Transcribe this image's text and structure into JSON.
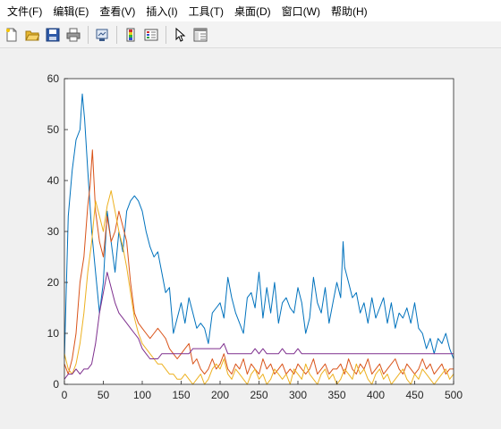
{
  "menu": {
    "items": [
      {
        "label": "文件(F)"
      },
      {
        "label": "编辑(E)"
      },
      {
        "label": "查看(V)"
      },
      {
        "label": "插入(I)"
      },
      {
        "label": "工具(T)"
      },
      {
        "label": "桌面(D)"
      },
      {
        "label": "窗口(W)"
      },
      {
        "label": "帮助(H)"
      }
    ]
  },
  "toolbar": {
    "buttons": [
      {
        "icon": "new-file-icon"
      },
      {
        "icon": "open-folder-icon"
      },
      {
        "icon": "save-icon"
      },
      {
        "icon": "print-icon"
      },
      {
        "icon": "link-plot-icon"
      },
      {
        "icon": "insert-colorbar-icon"
      },
      {
        "icon": "insert-legend-icon"
      },
      {
        "icon": "edit-plot-arrow-icon"
      },
      {
        "icon": "property-inspector-icon"
      }
    ]
  },
  "colors": {
    "blue": "#0072bd",
    "orange": "#d95319",
    "yellow": "#edb120",
    "purple": "#7e2f8e"
  },
  "chart_data": {
    "type": "line",
    "title": "",
    "xlabel": "",
    "ylabel": "",
    "xlim": [
      0,
      500
    ],
    "ylim": [
      0,
      60
    ],
    "xticks": [
      "0",
      "50",
      "100",
      "150",
      "200",
      "250",
      "300",
      "350",
      "400",
      "450",
      "500"
    ],
    "yticks": [
      "0",
      "10",
      "20",
      "30",
      "40",
      "50",
      "60"
    ],
    "grid": false,
    "legend": "none",
    "series": [
      {
        "color": "#0072bd",
        "x": [
          0,
          5,
          10,
          15,
          20,
          23,
          26,
          30,
          35,
          40,
          45,
          50,
          55,
          60,
          65,
          70,
          75,
          80,
          85,
          90,
          95,
          100,
          105,
          110,
          115,
          120,
          125,
          130,
          135,
          140,
          145,
          150,
          155,
          160,
          165,
          170,
          175,
          180,
          185,
          190,
          195,
          200,
          205,
          210,
          215,
          220,
          225,
          230,
          235,
          240,
          245,
          250,
          255,
          260,
          265,
          270,
          275,
          280,
          285,
          290,
          295,
          300,
          305,
          310,
          315,
          320,
          325,
          330,
          335,
          340,
          345,
          350,
          355,
          358,
          360,
          365,
          370,
          375,
          380,
          385,
          390,
          395,
          400,
          405,
          410,
          415,
          420,
          425,
          430,
          435,
          440,
          445,
          450,
          455,
          460,
          465,
          470,
          475,
          480,
          485,
          490,
          495,
          500
        ],
        "values": [
          5,
          33,
          42,
          48,
          50,
          57,
          52,
          42,
          30,
          22,
          14,
          20,
          34,
          28,
          22,
          30,
          26,
          34,
          36,
          37,
          36,
          34,
          30,
          27,
          25,
          26,
          22,
          18,
          19,
          10,
          13,
          16,
          12,
          17,
          14,
          11,
          12,
          11,
          8,
          14,
          15,
          16,
          13,
          21,
          17,
          14,
          12,
          10,
          17,
          18,
          15,
          22,
          13,
          19,
          14,
          20,
          12,
          16,
          17,
          15,
          14,
          19,
          16,
          10,
          13,
          21,
          16,
          14,
          19,
          12,
          16,
          20,
          17,
          28,
          23,
          20,
          17,
          18,
          14,
          16,
          12,
          17,
          13,
          15,
          17,
          12,
          16,
          11,
          14,
          13,
          15,
          12,
          16,
          11,
          10,
          7,
          9,
          6,
          9,
          8,
          10,
          7,
          5
        ]
      },
      {
        "color": "#d95319",
        "x": [
          0,
          5,
          10,
          15,
          20,
          25,
          30,
          33,
          36,
          40,
          45,
          50,
          55,
          60,
          65,
          70,
          75,
          80,
          85,
          90,
          95,
          100,
          105,
          110,
          115,
          120,
          125,
          130,
          135,
          140,
          145,
          150,
          155,
          160,
          165,
          170,
          175,
          180,
          185,
          190,
          195,
          200,
          205,
          210,
          215,
          220,
          225,
          230,
          235,
          240,
          245,
          250,
          255,
          260,
          265,
          270,
          275,
          280,
          285,
          290,
          295,
          300,
          305,
          310,
          315,
          320,
          325,
          330,
          335,
          340,
          345,
          350,
          355,
          360,
          365,
          370,
          375,
          380,
          385,
          390,
          395,
          400,
          405,
          410,
          415,
          420,
          425,
          430,
          435,
          440,
          445,
          450,
          455,
          460,
          465,
          470,
          475,
          480,
          485,
          490,
          495,
          500
        ],
        "values": [
          4,
          2,
          5,
          10,
          20,
          25,
          35,
          39,
          46,
          34,
          28,
          25,
          33,
          28,
          30,
          34,
          31,
          28,
          20,
          14,
          12,
          11,
          10,
          9,
          10,
          11,
          10,
          9,
          7,
          6,
          5,
          6,
          7,
          8,
          4,
          5,
          3,
          2,
          3,
          5,
          3,
          4,
          6,
          3,
          2,
          4,
          3,
          5,
          2,
          4,
          3,
          2,
          5,
          3,
          4,
          2,
          3,
          4,
          2,
          3,
          2,
          4,
          3,
          2,
          3,
          5,
          2,
          3,
          4,
          2,
          3,
          3,
          4,
          2,
          5,
          3,
          2,
          4,
          3,
          5,
          2,
          3,
          4,
          2,
          3,
          4,
          5,
          3,
          2,
          4,
          3,
          2,
          3,
          5,
          3,
          4,
          2,
          3,
          4,
          2,
          3,
          3
        ]
      },
      {
        "color": "#edb120",
        "x": [
          0,
          5,
          10,
          15,
          20,
          25,
          30,
          35,
          40,
          45,
          50,
          55,
          60,
          65,
          70,
          75,
          80,
          85,
          90,
          95,
          100,
          105,
          110,
          115,
          120,
          125,
          130,
          135,
          140,
          145,
          150,
          155,
          160,
          165,
          170,
          175,
          180,
          185,
          190,
          195,
          200,
          205,
          210,
          215,
          220,
          225,
          230,
          235,
          240,
          245,
          250,
          255,
          260,
          265,
          270,
          275,
          280,
          285,
          290,
          295,
          300,
          305,
          310,
          315,
          320,
          325,
          330,
          335,
          340,
          345,
          350,
          355,
          360,
          365,
          370,
          375,
          380,
          385,
          390,
          395,
          400,
          405,
          410,
          415,
          420,
          425,
          430,
          435,
          440,
          445,
          450,
          455,
          460,
          465,
          470,
          475,
          480,
          485,
          490,
          495,
          500
        ],
        "values": [
          6,
          3,
          2,
          4,
          8,
          14,
          22,
          28,
          36,
          33,
          30,
          35,
          38,
          34,
          30,
          27,
          23,
          18,
          13,
          10,
          8,
          7,
          6,
          5,
          4,
          4,
          3,
          2,
          2,
          1,
          1,
          2,
          1,
          0,
          1,
          2,
          0,
          1,
          3,
          4,
          3,
          5,
          2,
          1,
          3,
          2,
          1,
          0,
          2,
          3,
          1,
          2,
          0,
          1,
          3,
          2,
          1,
          2,
          0,
          3,
          2,
          1,
          4,
          2,
          1,
          0,
          2,
          3,
          1,
          2,
          0,
          1,
          3,
          2,
          1,
          4,
          2,
          3,
          1,
          0,
          2,
          3,
          1,
          2,
          0,
          1,
          2,
          3,
          1,
          0,
          2,
          1,
          3,
          2,
          1,
          0,
          1,
          2,
          3,
          1,
          2
        ]
      },
      {
        "color": "#7e2f8e",
        "x": [
          0,
          5,
          10,
          15,
          20,
          25,
          30,
          35,
          40,
          45,
          50,
          55,
          60,
          65,
          70,
          75,
          80,
          85,
          90,
          95,
          100,
          105,
          110,
          115,
          120,
          125,
          130,
          135,
          140,
          145,
          150,
          155,
          160,
          165,
          170,
          175,
          180,
          185,
          190,
          195,
          200,
          205,
          210,
          215,
          220,
          225,
          230,
          235,
          240,
          245,
          250,
          255,
          260,
          265,
          270,
          275,
          280,
          285,
          290,
          295,
          300,
          305,
          310,
          315,
          320,
          325,
          330,
          335,
          340,
          345,
          350,
          355,
          360,
          365,
          370,
          375,
          380,
          385,
          390,
          395,
          400,
          405,
          410,
          415,
          420,
          425,
          430,
          435,
          440,
          445,
          450,
          455,
          460,
          465,
          470,
          475,
          480,
          485,
          490,
          495,
          500
        ],
        "values": [
          1,
          2,
          2,
          3,
          2,
          3,
          3,
          4,
          8,
          14,
          18,
          22,
          19,
          16,
          14,
          13,
          12,
          11,
          10,
          9,
          7,
          6,
          5,
          5,
          5,
          6,
          6,
          6,
          6,
          6,
          6,
          6,
          6,
          7,
          7,
          7,
          7,
          7,
          7,
          7,
          7,
          8,
          6,
          6,
          6,
          6,
          6,
          6,
          6,
          7,
          6,
          7,
          6,
          6,
          6,
          6,
          7,
          6,
          6,
          6,
          7,
          6,
          6,
          6,
          6,
          6,
          6,
          6,
          6,
          6,
          6,
          6,
          6,
          6,
          6,
          6,
          6,
          6,
          6,
          6,
          6,
          6,
          6,
          6,
          6,
          6,
          6,
          6,
          6,
          6,
          6,
          6,
          6,
          6,
          6,
          6,
          6,
          6,
          6,
          6,
          6
        ]
      }
    ]
  }
}
